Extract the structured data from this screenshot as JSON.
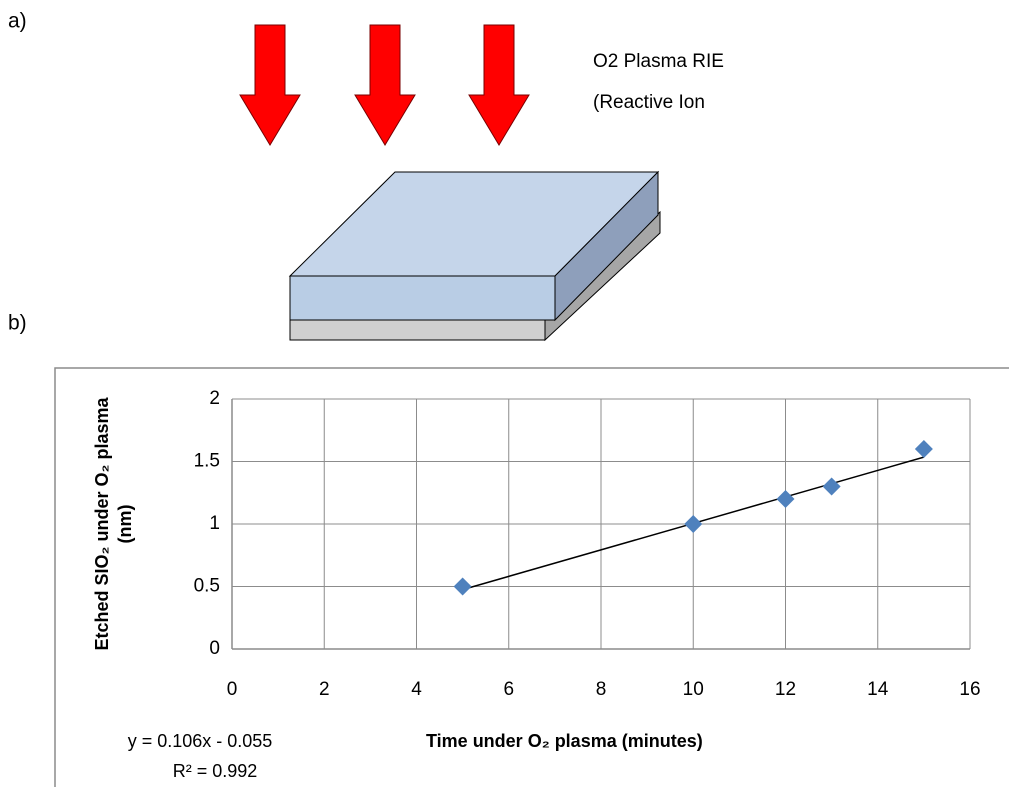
{
  "panel_labels": [
    "a)",
    "b)"
  ],
  "diagram": {
    "label_lines": [
      "O2 Plasma RIE",
      "(Reactive Ion"
    ]
  },
  "chart_data": {
    "type": "scatter",
    "x": [
      5,
      10,
      12,
      13,
      15
    ],
    "series": [
      {
        "color": "#4f81bd",
        "values": [
          0.5,
          1.0,
          1.2,
          1.3,
          1.6
        ]
      }
    ],
    "xlim": [
      0,
      16
    ],
    "xticks": [
      0,
      2,
      4,
      6,
      8,
      10,
      12,
      14,
      16
    ],
    "ylim": [
      0,
      2
    ],
    "yticks": [
      0,
      0.5,
      1,
      1.5,
      2
    ],
    "grid": true,
    "x_label": "Time under O₂ plasma (minutes)",
    "y_label": [
      "Etched SIO₂ under O₂ plasma",
      "(nm)"
    ],
    "trendline": {
      "equation": "y = 0.106x - 0.055",
      "r2_label": "R² = 0.992",
      "slope": 0.106,
      "intercept": -0.055
    }
  }
}
